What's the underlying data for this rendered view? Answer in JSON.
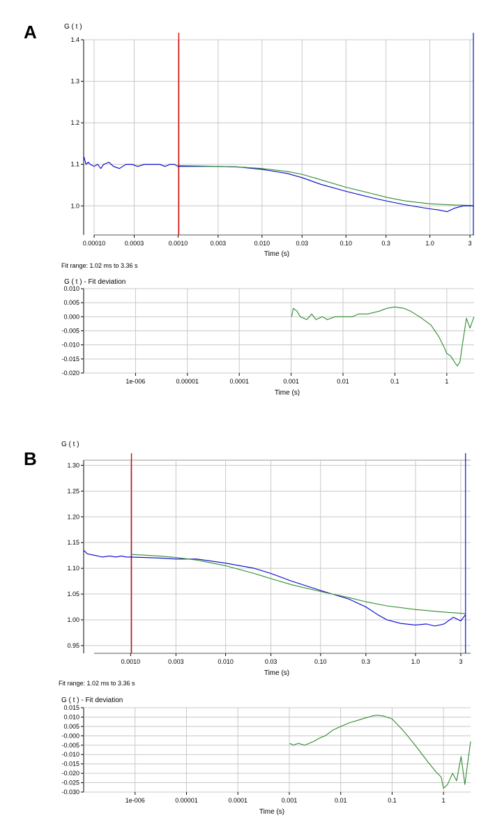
{
  "chart_data": [
    {
      "id": "A-main",
      "panel_label": "A",
      "type": "line",
      "xscale": "log",
      "ylabel": "G ( t )",
      "xlabel": "Time (s)",
      "xlim": [
        7.5e-05,
        3.36
      ],
      "ylim": [
        0.93,
        1.4
      ],
      "xticks": [
        0.0001,
        0.0003,
        0.001,
        0.003,
        0.01,
        0.03,
        0.1,
        0.3,
        1.0,
        3
      ],
      "xtick_labels": [
        "0.00010",
        "0.0003",
        "0.0010",
        "0.003",
        "0.010",
        "0.03",
        "0.10",
        "0.3",
        "1.0",
        "3"
      ],
      "yticks": [
        1.0,
        1.1,
        1.2,
        1.3,
        1.4
      ],
      "ytick_labels": [
        "1.0",
        "1.1",
        "1.2",
        "1.3",
        "1.4"
      ],
      "fit_range_markers": [
        {
          "name": "fit-start",
          "x": 0.00102,
          "color": "#dd0000"
        },
        {
          "name": "fit-end",
          "x": 3.36,
          "color": "#2233cc"
        }
      ],
      "series": [
        {
          "name": "data",
          "color": "#0000cc",
          "x": [
            7.5e-05,
            8e-05,
            8.5e-05,
            9e-05,
            0.0001,
            0.00011,
            0.00012,
            0.00013,
            0.00015,
            0.00017,
            0.0002,
            0.00024,
            0.00028,
            0.00033,
            0.0004,
            0.0005,
            0.0006,
            0.0007,
            0.0008,
            0.0009,
            0.001,
            0.002,
            0.003,
            0.005,
            0.01,
            0.02,
            0.03,
            0.05,
            0.1,
            0.2,
            0.3,
            0.5,
            0.7,
            1.0,
            1.3,
            1.6,
            2.0,
            2.5,
            3.0,
            3.36
          ],
          "y": [
            1.12,
            1.1,
            1.105,
            1.1,
            1.095,
            1.1,
            1.09,
            1.1,
            1.105,
            1.095,
            1.09,
            1.1,
            1.1,
            1.095,
            1.1,
            1.1,
            1.1,
            1.095,
            1.1,
            1.1,
            1.095,
            1.095,
            1.095,
            1.094,
            1.088,
            1.078,
            1.068,
            1.052,
            1.035,
            1.02,
            1.012,
            1.003,
            0.998,
            0.993,
            0.99,
            0.986,
            0.995,
            1.0,
            1.0,
            1.0
          ]
        },
        {
          "name": "fit",
          "color": "#2e8b2e",
          "x": [
            0.00102,
            0.003,
            0.006,
            0.01,
            0.02,
            0.03,
            0.05,
            0.1,
            0.2,
            0.3,
            0.5,
            1.0,
            2.0,
            3.36
          ],
          "y": [
            1.097,
            1.095,
            1.093,
            1.09,
            1.083,
            1.076,
            1.063,
            1.045,
            1.03,
            1.021,
            1.012,
            1.005,
            1.002,
            1.001
          ]
        }
      ]
    },
    {
      "id": "A-residual",
      "type": "line",
      "xscale": "log",
      "ylabel": "G ( t ) - Fit deviation",
      "xlabel": "Time (s)",
      "xlim": [
        1e-07,
        3.36
      ],
      "ylim": [
        -0.02,
        0.01
      ],
      "xticks": [
        1e-06,
        1e-05,
        0.0001,
        0.001,
        0.01,
        0.1,
        1
      ],
      "xtick_labels": [
        "1e-006",
        "0.00001",
        "0.0001",
        "0.001",
        "0.01",
        "0.1",
        "1"
      ],
      "yticks": [
        -0.02,
        -0.015,
        -0.01,
        -0.005,
        0.0,
        0.005,
        0.01
      ],
      "ytick_labels": [
        "-0.020",
        "-0.015",
        "-0.010",
        "-0.005",
        "0.000",
        "0.005",
        "0.010"
      ],
      "note": "Fit range:  1.02 ms to 3.36 s",
      "series": [
        {
          "name": "deviation",
          "color": "#2e8b2e",
          "x": [
            0.00102,
            0.0011,
            0.0013,
            0.0015,
            0.002,
            0.0025,
            0.003,
            0.004,
            0.005,
            0.007,
            0.01,
            0.015,
            0.02,
            0.03,
            0.05,
            0.07,
            0.1,
            0.15,
            0.2,
            0.3,
            0.5,
            0.7,
            0.9,
            1.0,
            1.2,
            1.4,
            1.6,
            1.8,
            2.0,
            2.4,
            2.8,
            3.36
          ],
          "y": [
            0.0,
            0.003,
            0.002,
            0.0,
            -0.001,
            0.001,
            -0.001,
            0.0,
            -0.001,
            0.0,
            0.0,
            0.0,
            0.001,
            0.001,
            0.002,
            0.003,
            0.0035,
            0.003,
            0.002,
            0.0,
            -0.003,
            -0.007,
            -0.011,
            -0.013,
            -0.014,
            -0.016,
            -0.0175,
            -0.016,
            -0.01,
            -0.0005,
            -0.004,
            0.0
          ]
        }
      ]
    },
    {
      "id": "B-main",
      "panel_label": "B",
      "type": "line",
      "xscale": "log",
      "ylabel": "G ( t )",
      "xlabel": "Time (s)",
      "xlim": [
        0.00032,
        3.8
      ],
      "ylim": [
        0.935,
        1.31
      ],
      "xticks": [
        0.001,
        0.003,
        0.01,
        0.03,
        0.1,
        0.3,
        1.0,
        3
      ],
      "xtick_labels": [
        "0.0010",
        "0.003",
        "0.010",
        "0.03",
        "0.10",
        "0.3",
        "1.0",
        "3"
      ],
      "yticks": [
        0.95,
        1.0,
        1.05,
        1.1,
        1.15,
        1.2,
        1.25,
        1.3
      ],
      "ytick_labels": [
        "0.95",
        "1.00",
        "1.05",
        "1.10",
        "1.15",
        "1.20",
        "1.25",
        "1.30"
      ],
      "fit_range_markers": [
        {
          "name": "fit-start",
          "x": 0.00102,
          "color": "#dd0000"
        },
        {
          "name": "fit-end",
          "x": 3.36,
          "color": "#2233cc"
        }
      ],
      "series": [
        {
          "name": "data",
          "color": "#0000cc",
          "x": [
            0.00032,
            0.00035,
            0.0004,
            0.00045,
            0.0005,
            0.0006,
            0.0007,
            0.0008,
            0.0009,
            0.001,
            0.002,
            0.003,
            0.005,
            0.01,
            0.02,
            0.03,
            0.05,
            0.1,
            0.2,
            0.3,
            0.4,
            0.5,
            0.7,
            1.0,
            1.3,
            1.6,
            2.0,
            2.5,
            3.0,
            3.36
          ],
          "y": [
            1.135,
            1.128,
            1.126,
            1.124,
            1.122,
            1.124,
            1.122,
            1.124,
            1.122,
            1.122,
            1.12,
            1.118,
            1.118,
            1.11,
            1.1,
            1.09,
            1.075,
            1.057,
            1.04,
            1.025,
            1.01,
            1.0,
            0.993,
            0.99,
            0.992,
            0.988,
            0.992,
            1.005,
            0.998,
            1.01
          ]
        },
        {
          "name": "fit",
          "color": "#2e8b2e",
          "x": [
            0.00102,
            0.002,
            0.003,
            0.005,
            0.01,
            0.02,
            0.03,
            0.05,
            0.1,
            0.2,
            0.3,
            0.5,
            1.0,
            2.0,
            3.36
          ],
          "y": [
            1.127,
            1.124,
            1.121,
            1.116,
            1.105,
            1.09,
            1.08,
            1.068,
            1.055,
            1.043,
            1.035,
            1.027,
            1.02,
            1.015,
            1.012
          ]
        }
      ]
    },
    {
      "id": "B-residual",
      "type": "line",
      "xscale": "log",
      "ylabel": "G ( t ) - Fit deviation",
      "xlabel": "Time (s)",
      "xlim": [
        1e-07,
        3.36
      ],
      "ylim": [
        -0.03,
        0.015
      ],
      "xticks": [
        1e-06,
        1e-05,
        0.0001,
        0.001,
        0.01,
        0.1,
        1
      ],
      "xtick_labels": [
        "1e-006",
        "0.00001",
        "0.0001",
        "0.001",
        "0.01",
        "0.1",
        "1"
      ],
      "yticks": [
        -0.03,
        -0.025,
        -0.02,
        -0.015,
        -0.01,
        -0.005,
        0.0,
        0.005,
        0.01,
        0.015
      ],
      "ytick_labels": [
        "-0.030",
        "-0.025",
        "-0.020",
        "-0.015",
        "-0.010",
        "-0.005",
        "-0.000",
        "0.005",
        "0.010",
        "0.015"
      ],
      "note": "Fit range:  1.02 ms to 3.36 s",
      "series": [
        {
          "name": "deviation",
          "color": "#2e8b2e",
          "x": [
            0.00102,
            0.0012,
            0.0015,
            0.002,
            0.003,
            0.004,
            0.005,
            0.007,
            0.01,
            0.015,
            0.02,
            0.03,
            0.04,
            0.05,
            0.07,
            0.1,
            0.15,
            0.2,
            0.3,
            0.5,
            0.7,
            0.9,
            1.0,
            1.2,
            1.5,
            1.8,
            2.2,
            2.6,
            3.0,
            3.36
          ],
          "y": [
            -0.004,
            -0.005,
            -0.004,
            -0.005,
            -0.003,
            -0.001,
            0.0,
            0.003,
            0.005,
            0.007,
            0.008,
            0.0095,
            0.0105,
            0.011,
            0.0105,
            0.009,
            0.004,
            0.0,
            -0.006,
            -0.014,
            -0.019,
            -0.022,
            -0.028,
            -0.026,
            -0.02,
            -0.024,
            -0.011,
            -0.026,
            -0.013,
            -0.003
          ]
        }
      ]
    }
  ]
}
